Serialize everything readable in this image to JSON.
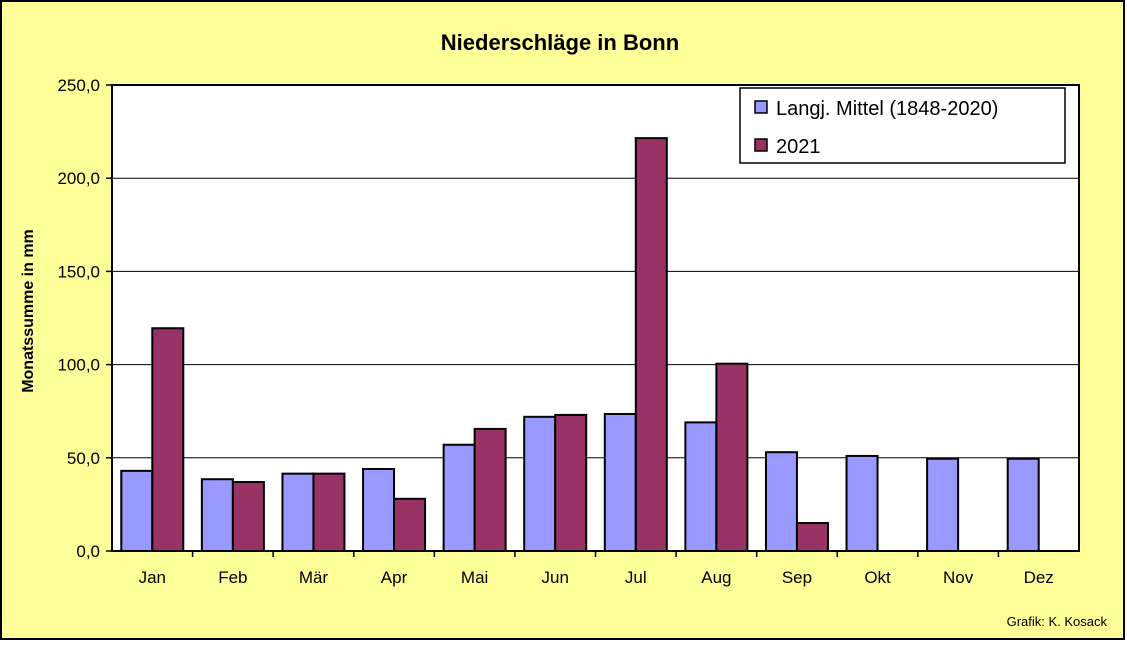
{
  "chart_data": {
    "type": "bar",
    "title": "Niederschläge in Bonn",
    "xlabel": "",
    "ylabel": "Monatssumme in mm",
    "categories": [
      "Jan",
      "Feb",
      "Mär",
      "Apr",
      "Mai",
      "Jun",
      "Jul",
      "Aug",
      "Sep",
      "Okt",
      "Nov",
      "Dez"
    ],
    "series": [
      {
        "name": "Langj. Mittel (1848-2020)",
        "color": "#9999ff",
        "values": [
          43,
          38.5,
          41.5,
          44,
          57,
          72,
          73.5,
          69,
          53,
          51,
          49.5,
          49.5
        ]
      },
      {
        "name": "2021",
        "color": "#993366",
        "values": [
          119.5,
          37,
          41.5,
          28,
          65.5,
          73,
          221.5,
          100.5,
          15,
          null,
          null,
          null
        ]
      }
    ],
    "ylim": [
      0,
      250
    ],
    "yticks": [
      "0,0",
      "50,0",
      "100,0",
      "150,0",
      "200,0",
      "250,0"
    ],
    "grid": true,
    "legend_position": "top-right",
    "plot_background": "#ffffff",
    "chart_background": "#ffff99",
    "credit": "Grafik:  K. Kosack"
  }
}
